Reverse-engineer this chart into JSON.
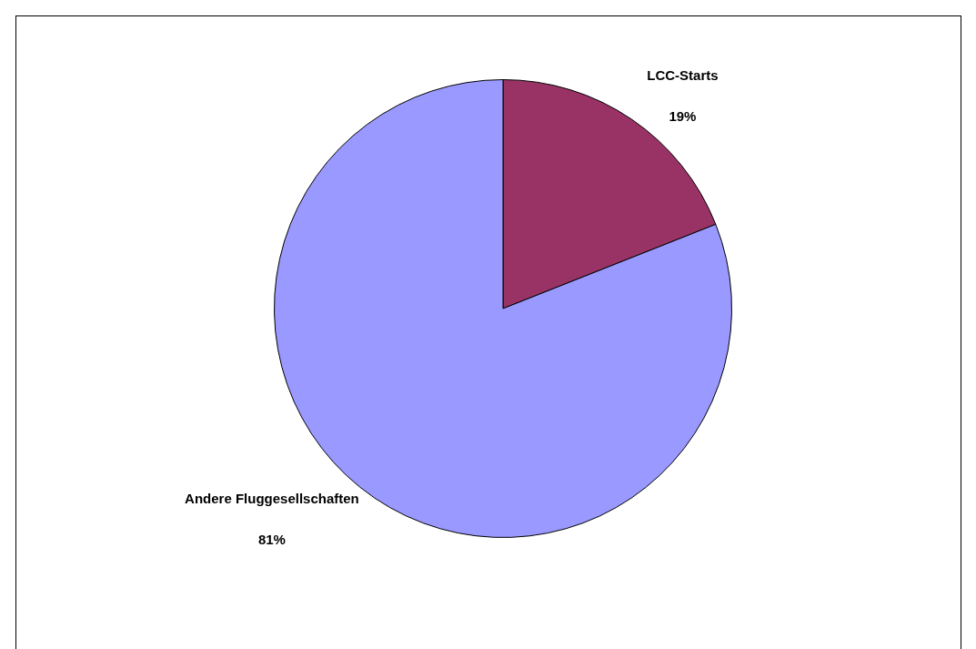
{
  "chart_data": {
    "type": "pie",
    "categories": [
      "LCC-Starts",
      "Andere Fluggesellschaften"
    ],
    "values": [
      19,
      81
    ],
    "colors": [
      "#993366",
      "#9999ff"
    ],
    "value_labels": [
      "19%",
      "81%"
    ],
    "legend": false
  }
}
